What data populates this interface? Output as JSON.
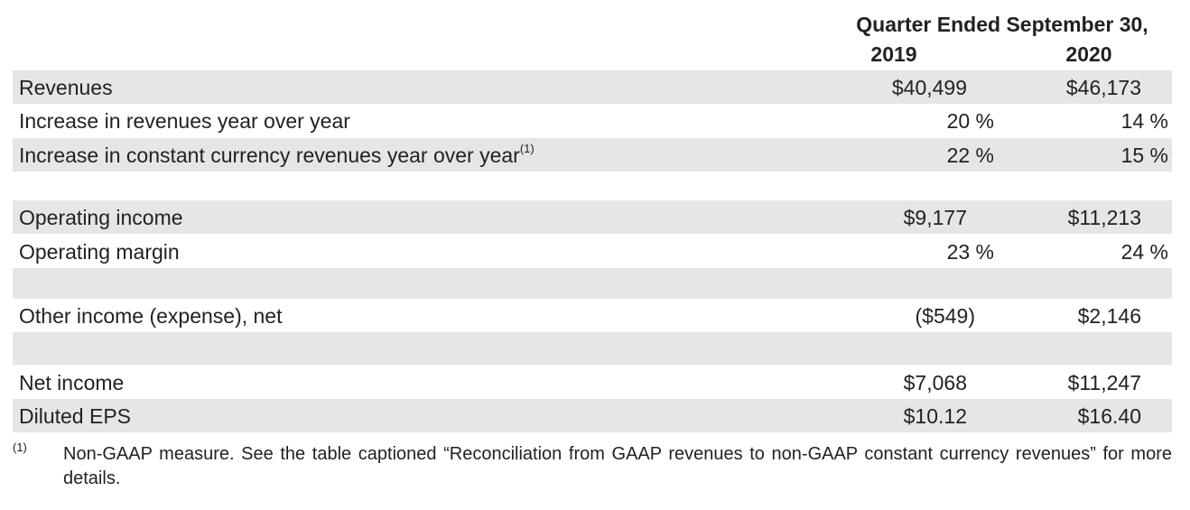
{
  "header": {
    "title": "Quarter Ended September 30,",
    "year_1": "2019",
    "year_2": "2020"
  },
  "rows": [
    {
      "label": "Revenues",
      "footnote": "",
      "v2019": "$40,499",
      "v2020": "$46,173"
    },
    {
      "label": "Increase in revenues year over year",
      "footnote": "",
      "v2019": "20 %",
      "v2020": "14 %"
    },
    {
      "label": "Increase in constant currency revenues year over year",
      "footnote": "(1)",
      "v2019": "22 %",
      "v2020": "15 %"
    },
    {
      "label": "Operating income",
      "footnote": "",
      "v2019": "$9,177",
      "v2020": "$11,213"
    },
    {
      "label": "Operating margin",
      "footnote": "",
      "v2019": "23 %",
      "v2020": "24 %"
    },
    {
      "label": "Other income (expense), net",
      "footnote": "",
      "v2019": "($549)",
      "v2020": "$2,146"
    },
    {
      "label": "Net income",
      "footnote": "",
      "v2019": "$7,068",
      "v2020": "$11,247"
    },
    {
      "label": "Diluted EPS",
      "footnote": "",
      "v2019": "$10.12",
      "v2020": "$16.40"
    }
  ],
  "footnote": {
    "marker": "(1)",
    "text": "Non-GAAP measure. See the table captioned “Reconciliation from GAAP revenues to non-GAAP constant currency revenues” for more details."
  }
}
